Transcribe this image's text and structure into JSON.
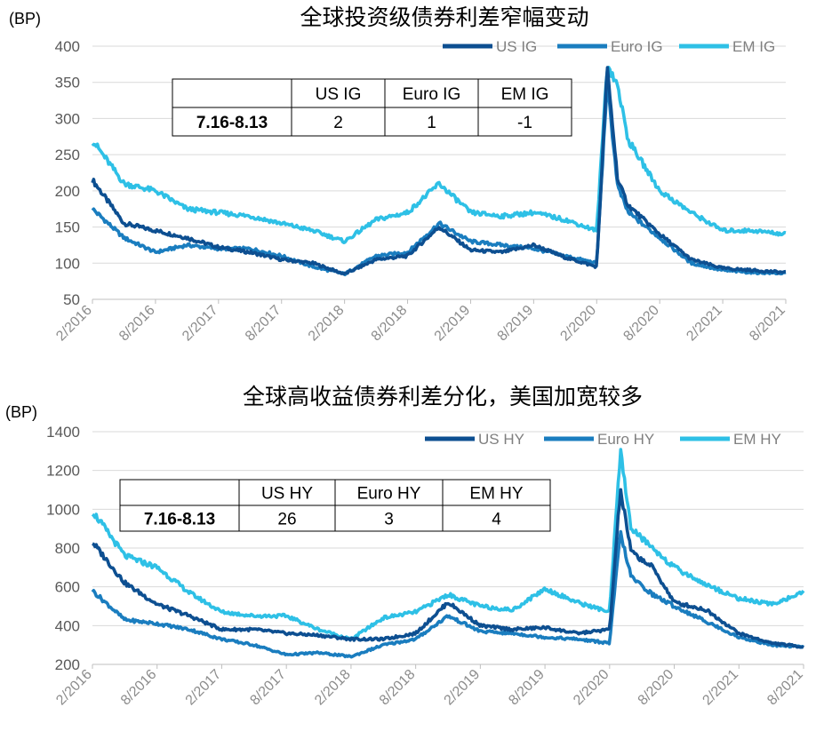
{
  "chart_data": [
    {
      "type": "line",
      "title": "全球投资级债券利差窄幅变动",
      "ylabel": "(BP)",
      "ylim": [
        50,
        400
      ],
      "yticks": [
        50,
        100,
        150,
        200,
        250,
        300,
        350,
        400
      ],
      "xticks": [
        "2/2016",
        "8/2016",
        "2/2017",
        "8/2017",
        "2/2018",
        "8/2018",
        "2/2019",
        "8/2019",
        "2/2020",
        "8/2020",
        "2/2021",
        "8/2021"
      ],
      "grid": true,
      "legend_position": "top-right",
      "series": [
        {
          "name": "US IG",
          "color": "#0d4f91",
          "x": [
            "2/2016",
            "5/2016",
            "8/2016",
            "11/2016",
            "2/2017",
            "5/2017",
            "8/2017",
            "11/2017",
            "2/2018",
            "5/2018",
            "8/2018",
            "11/2018",
            "2/2019",
            "5/2019",
            "8/2019",
            "11/2019",
            "2/2020",
            "3/2020",
            "4/2020",
            "5/2020",
            "8/2020",
            "11/2020",
            "2/2021",
            "5/2021",
            "8/2021"
          ],
          "values": [
            215,
            155,
            145,
            135,
            122,
            115,
            105,
            100,
            85,
            105,
            110,
            150,
            118,
            115,
            125,
            108,
            95,
            370,
            215,
            180,
            140,
            105,
            93,
            90,
            87
          ]
        },
        {
          "name": "Euro IG",
          "color": "#1a7dbf",
          "x": [
            "2/2016",
            "5/2016",
            "8/2016",
            "11/2016",
            "2/2017",
            "5/2017",
            "8/2017",
            "11/2017",
            "2/2018",
            "5/2018",
            "8/2018",
            "11/2018",
            "2/2019",
            "5/2019",
            "8/2019",
            "11/2019",
            "2/2020",
            "3/2020",
            "4/2020",
            "5/2020",
            "8/2020",
            "11/2020",
            "2/2021",
            "5/2021",
            "8/2021"
          ],
          "values": [
            175,
            135,
            115,
            125,
            120,
            120,
            110,
            95,
            85,
            110,
            115,
            155,
            130,
            125,
            120,
            110,
            100,
            350,
            205,
            170,
            135,
            100,
            90,
            87,
            86
          ]
        },
        {
          "name": "EM IG",
          "color": "#2ec0e6",
          "x": [
            "2/2016",
            "5/2016",
            "8/2016",
            "11/2016",
            "2/2017",
            "5/2017",
            "8/2017",
            "11/2017",
            "2/2018",
            "5/2018",
            "8/2018",
            "11/2018",
            "2/2019",
            "5/2019",
            "8/2019",
            "11/2019",
            "2/2020",
            "3/2020",
            "4/2020",
            "5/2020",
            "8/2020",
            "11/2020",
            "2/2021",
            "5/2021",
            "8/2021"
          ],
          "values": [
            270,
            210,
            200,
            175,
            170,
            165,
            155,
            145,
            130,
            160,
            170,
            210,
            170,
            165,
            170,
            160,
            145,
            375,
            345,
            270,
            200,
            170,
            145,
            145,
            140
          ]
        }
      ],
      "table": {
        "columns": [
          "",
          "US IG",
          "Euro IG",
          "EM IG"
        ],
        "rows": [
          [
            "7.16-8.13",
            "2",
            "1",
            "-1"
          ]
        ]
      }
    },
    {
      "type": "line",
      "title": "全球高收益债券利差分化，美国加宽较多",
      "ylabel": "(BP)",
      "ylim": [
        200,
        1400
      ],
      "yticks": [
        200,
        400,
        600,
        800,
        1000,
        1200,
        1400
      ],
      "xticks": [
        "2/2016",
        "8/2016",
        "2/2017",
        "8/2017",
        "2/2018",
        "8/2018",
        "2/2019",
        "8/2019",
        "2/2020",
        "8/2020",
        "2/2021",
        "8/2021"
      ],
      "grid": true,
      "legend_position": "top-right",
      "series": [
        {
          "name": "US HY",
          "color": "#0d4f91",
          "x": [
            "2/2016",
            "5/2016",
            "8/2016",
            "11/2016",
            "2/2017",
            "5/2017",
            "8/2017",
            "11/2017",
            "2/2018",
            "5/2018",
            "8/2018",
            "11/2018",
            "2/2019",
            "5/2019",
            "8/2019",
            "11/2019",
            "2/2020",
            "3/2020",
            "4/2020",
            "6/2020",
            "8/2020",
            "11/2020",
            "2/2021",
            "5/2021",
            "8/2021"
          ],
          "values": [
            830,
            620,
            510,
            450,
            380,
            380,
            360,
            350,
            330,
            330,
            360,
            520,
            400,
            380,
            390,
            360,
            380,
            1100,
            780,
            700,
            520,
            480,
            360,
            310,
            290
          ]
        },
        {
          "name": "Euro HY",
          "color": "#1a7dbf",
          "x": [
            "2/2016",
            "5/2016",
            "8/2016",
            "11/2016",
            "2/2017",
            "5/2017",
            "8/2017",
            "11/2017",
            "2/2018",
            "5/2018",
            "8/2018",
            "11/2018",
            "2/2019",
            "5/2019",
            "8/2019",
            "11/2019",
            "2/2020",
            "3/2020",
            "4/2020",
            "6/2020",
            "8/2020",
            "11/2020",
            "2/2021",
            "5/2021",
            "8/2021"
          ],
          "values": [
            580,
            430,
            410,
            380,
            330,
            300,
            250,
            260,
            240,
            300,
            330,
            450,
            370,
            360,
            340,
            330,
            310,
            880,
            650,
            560,
            500,
            420,
            340,
            300,
            290
          ]
        },
        {
          "name": "EM HY",
          "color": "#2ec0e6",
          "x": [
            "2/2016",
            "5/2016",
            "8/2016",
            "11/2016",
            "2/2017",
            "5/2017",
            "8/2017",
            "11/2017",
            "2/2018",
            "5/2018",
            "8/2018",
            "11/2018",
            "2/2019",
            "5/2019",
            "8/2019",
            "11/2019",
            "2/2020",
            "3/2020",
            "4/2020",
            "6/2020",
            "8/2020",
            "11/2020",
            "2/2021",
            "5/2021",
            "8/2021"
          ],
          "values": [
            990,
            760,
            700,
            570,
            470,
            450,
            450,
            380,
            330,
            440,
            470,
            560,
            500,
            480,
            590,
            520,
            470,
            1300,
            900,
            800,
            700,
            610,
            540,
            510,
            570
          ]
        }
      ],
      "table": {
        "columns": [
          "",
          "US HY",
          "Euro HY",
          "EM HY"
        ],
        "rows": [
          [
            "7.16-8.13",
            "26",
            "3",
            "4"
          ]
        ]
      }
    }
  ]
}
